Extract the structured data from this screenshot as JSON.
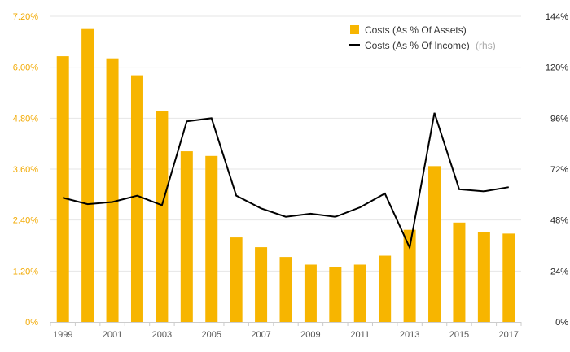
{
  "chart_data": {
    "type": "bar",
    "categories": [
      "1999",
      "2000",
      "2001",
      "2002",
      "2003",
      "2004",
      "2005",
      "2006",
      "2007",
      "2008",
      "2009",
      "2010",
      "2011",
      "2012",
      "2013",
      "2014",
      "2015",
      "2016",
      "2017"
    ],
    "x_tick_labels": [
      "1999",
      "2001",
      "2003",
      "2005",
      "2007",
      "2009",
      "2011",
      "2013",
      "2015",
      "2017"
    ],
    "series": [
      {
        "name": "Costs (As % Of Assets)",
        "type": "bar",
        "axis": "left",
        "color": "#f7b500",
        "values": [
          6.26,
          6.9,
          6.21,
          5.81,
          4.97,
          4.02,
          3.91,
          1.99,
          1.76,
          1.53,
          1.35,
          1.29,
          1.35,
          1.56,
          2.17,
          3.67,
          2.34,
          2.12,
          2.08
        ]
      },
      {
        "name": "Costs (As % Of Income)",
        "type": "line",
        "axis": "right",
        "color": "#000000",
        "values": [
          58.5,
          55.5,
          56.5,
          59.5,
          55.0,
          94.5,
          96.0,
          59.5,
          53.5,
          49.5,
          51.0,
          49.5,
          54.0,
          60.5,
          35.0,
          98.5,
          62.5,
          61.5,
          63.5
        ]
      }
    ],
    "y_left": {
      "ylim": [
        0,
        7.2
      ],
      "ticks": [
        0,
        1.2,
        2.4,
        3.6,
        4.8,
        6.0,
        7.2
      ],
      "tick_labels": [
        "0%",
        "1.20%",
        "2.40%",
        "3.60%",
        "4.80%",
        "6.00%",
        "7.20%"
      ],
      "color": "#f2a900"
    },
    "y_right": {
      "ylim": [
        0,
        144
      ],
      "ticks": [
        0,
        24,
        48,
        72,
        96,
        120,
        144
      ],
      "tick_labels": [
        "0%",
        "24%",
        "48%",
        "72%",
        "96%",
        "120%",
        "144%"
      ],
      "color": "#222222"
    },
    "legend": {
      "placement": "top-right",
      "items": [
        {
          "label": "Costs (As % Of Assets)",
          "marker": "square",
          "color": "#f7b500"
        },
        {
          "label": "Costs (As % Of Income)",
          "suffix": "(rhs)",
          "marker": "line",
          "color": "#000000"
        }
      ]
    },
    "grid": true,
    "gridColor": "#e6e6e6",
    "title": "",
    "xlabel": "",
    "ylabel": ""
  }
}
